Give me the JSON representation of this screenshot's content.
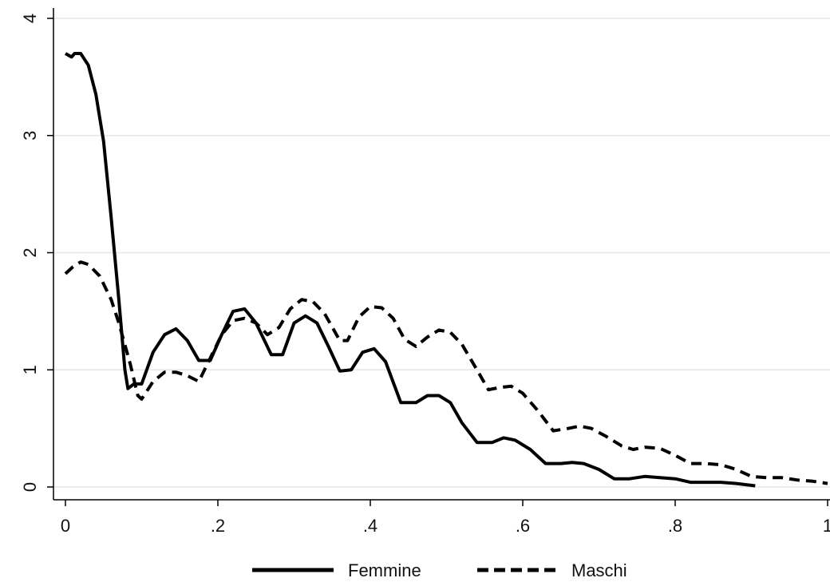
{
  "chart_data": {
    "type": "line",
    "title": "",
    "xlabel": "",
    "ylabel": "",
    "xlim": [
      0,
      1
    ],
    "ylim": [
      0,
      4
    ],
    "xticks": [
      {
        "value": 0,
        "label": "0"
      },
      {
        "value": 0.2,
        "label": ".2"
      },
      {
        "value": 0.4,
        "label": ".4"
      },
      {
        "value": 0.6,
        "label": ".6"
      },
      {
        "value": 0.8,
        "label": ".8"
      },
      {
        "value": 1,
        "label": "1"
      }
    ],
    "yticks": [
      {
        "value": 0,
        "label": "0"
      },
      {
        "value": 1,
        "label": "1"
      },
      {
        "value": 2,
        "label": "2"
      },
      {
        "value": 3,
        "label": "3"
      },
      {
        "value": 4,
        "label": "4"
      }
    ],
    "grid": "horizontal",
    "legend_position": "bottom",
    "series": [
      {
        "name": "Femmine",
        "style": "solid",
        "color": "#000000",
        "points": [
          [
            0.0,
            3.7
          ],
          [
            0.008,
            3.67
          ],
          [
            0.012,
            3.7
          ],
          [
            0.02,
            3.7
          ],
          [
            0.03,
            3.6
          ],
          [
            0.04,
            3.35
          ],
          [
            0.05,
            2.95
          ],
          [
            0.06,
            2.3
          ],
          [
            0.07,
            1.6
          ],
          [
            0.078,
            1.0
          ],
          [
            0.082,
            0.84
          ],
          [
            0.09,
            0.88
          ],
          [
            0.1,
            0.88
          ],
          [
            0.115,
            1.15
          ],
          [
            0.13,
            1.3
          ],
          [
            0.145,
            1.35
          ],
          [
            0.16,
            1.25
          ],
          [
            0.175,
            1.08
          ],
          [
            0.19,
            1.08
          ],
          [
            0.205,
            1.3
          ],
          [
            0.22,
            1.5
          ],
          [
            0.235,
            1.52
          ],
          [
            0.25,
            1.4
          ],
          [
            0.27,
            1.13
          ],
          [
            0.285,
            1.13
          ],
          [
            0.3,
            1.4
          ],
          [
            0.315,
            1.46
          ],
          [
            0.33,
            1.4
          ],
          [
            0.345,
            1.2
          ],
          [
            0.36,
            0.99
          ],
          [
            0.375,
            1.0
          ],
          [
            0.39,
            1.15
          ],
          [
            0.405,
            1.18
          ],
          [
            0.42,
            1.07
          ],
          [
            0.44,
            0.72
          ],
          [
            0.46,
            0.72
          ],
          [
            0.475,
            0.78
          ],
          [
            0.49,
            0.78
          ],
          [
            0.505,
            0.72
          ],
          [
            0.52,
            0.55
          ],
          [
            0.54,
            0.38
          ],
          [
            0.56,
            0.38
          ],
          [
            0.575,
            0.42
          ],
          [
            0.59,
            0.4
          ],
          [
            0.61,
            0.32
          ],
          [
            0.63,
            0.2
          ],
          [
            0.65,
            0.2
          ],
          [
            0.665,
            0.21
          ],
          [
            0.68,
            0.2
          ],
          [
            0.7,
            0.15
          ],
          [
            0.72,
            0.07
          ],
          [
            0.74,
            0.07
          ],
          [
            0.76,
            0.09
          ],
          [
            0.78,
            0.08
          ],
          [
            0.8,
            0.07
          ],
          [
            0.82,
            0.04
          ],
          [
            0.86,
            0.04
          ],
          [
            0.88,
            0.03
          ],
          [
            0.905,
            0.01
          ]
        ]
      },
      {
        "name": "Maschi",
        "style": "dashed",
        "color": "#000000",
        "points": [
          [
            0.0,
            1.82
          ],
          [
            0.01,
            1.88
          ],
          [
            0.02,
            1.92
          ],
          [
            0.03,
            1.9
          ],
          [
            0.045,
            1.8
          ],
          [
            0.06,
            1.6
          ],
          [
            0.07,
            1.4
          ],
          [
            0.085,
            1.05
          ],
          [
            0.095,
            0.78
          ],
          [
            0.1,
            0.75
          ],
          [
            0.115,
            0.9
          ],
          [
            0.13,
            0.98
          ],
          [
            0.145,
            0.98
          ],
          [
            0.16,
            0.95
          ],
          [
            0.175,
            0.9
          ],
          [
            0.19,
            1.1
          ],
          [
            0.205,
            1.3
          ],
          [
            0.22,
            1.42
          ],
          [
            0.235,
            1.44
          ],
          [
            0.25,
            1.4
          ],
          [
            0.265,
            1.3
          ],
          [
            0.28,
            1.36
          ],
          [
            0.295,
            1.52
          ],
          [
            0.31,
            1.6
          ],
          [
            0.325,
            1.58
          ],
          [
            0.34,
            1.48
          ],
          [
            0.36,
            1.25
          ],
          [
            0.37,
            1.25
          ],
          [
            0.385,
            1.45
          ],
          [
            0.4,
            1.54
          ],
          [
            0.415,
            1.53
          ],
          [
            0.43,
            1.44
          ],
          [
            0.445,
            1.26
          ],
          [
            0.46,
            1.2
          ],
          [
            0.475,
            1.28
          ],
          [
            0.49,
            1.34
          ],
          [
            0.505,
            1.32
          ],
          [
            0.52,
            1.22
          ],
          [
            0.54,
            1.0
          ],
          [
            0.555,
            0.83
          ],
          [
            0.57,
            0.85
          ],
          [
            0.585,
            0.86
          ],
          [
            0.6,
            0.8
          ],
          [
            0.62,
            0.65
          ],
          [
            0.64,
            0.48
          ],
          [
            0.66,
            0.5
          ],
          [
            0.675,
            0.52
          ],
          [
            0.69,
            0.5
          ],
          [
            0.71,
            0.43
          ],
          [
            0.73,
            0.35
          ],
          [
            0.745,
            0.32
          ],
          [
            0.76,
            0.34
          ],
          [
            0.78,
            0.33
          ],
          [
            0.8,
            0.27
          ],
          [
            0.82,
            0.2
          ],
          [
            0.84,
            0.2
          ],
          [
            0.86,
            0.19
          ],
          [
            0.88,
            0.15
          ],
          [
            0.9,
            0.09
          ],
          [
            0.92,
            0.08
          ],
          [
            0.94,
            0.08
          ],
          [
            0.96,
            0.06
          ],
          [
            0.98,
            0.05
          ],
          [
            1.0,
            0.03
          ]
        ]
      }
    ]
  },
  "colors": {
    "background": "#ffffff",
    "axis": "#000000",
    "grid": "#e6e6e6",
    "text": "#111111"
  }
}
